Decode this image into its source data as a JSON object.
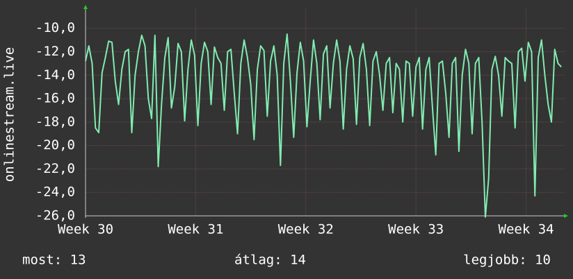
{
  "chart_data": {
    "type": "line",
    "ylabel": "onlinestream.live",
    "xlim": [
      30,
      34.35
    ],
    "ylim": [
      -26,
      -8.3
    ],
    "xticks": [
      {
        "value": 30,
        "label": "Week 30"
      },
      {
        "value": 31,
        "label": "Week 31"
      },
      {
        "value": 32,
        "label": "Week 32"
      },
      {
        "value": 33,
        "label": "Week 33"
      },
      {
        "value": 34,
        "label": "Week 34"
      }
    ],
    "yticks": [
      {
        "value": -26,
        "label": "-26,0"
      },
      {
        "value": -24,
        "label": "-24,0"
      },
      {
        "value": -22,
        "label": "-22,0"
      },
      {
        "value": -20,
        "label": "-20,0"
      },
      {
        "value": -18,
        "label": "-18,0"
      },
      {
        "value": -16,
        "label": "-16,0"
      },
      {
        "value": -14,
        "label": "-14,0"
      },
      {
        "value": -12,
        "label": "-12,0"
      },
      {
        "value": -10,
        "label": "-10,0"
      }
    ],
    "grid": true,
    "x": [
      30.0,
      30.03,
      30.06,
      30.09,
      30.12,
      30.15,
      30.18,
      30.21,
      30.24,
      30.27,
      30.3,
      30.33,
      30.36,
      30.39,
      30.42,
      30.45,
      30.48,
      30.51,
      30.54,
      30.57,
      30.6,
      30.63,
      30.66,
      30.69,
      30.72,
      30.75,
      30.78,
      30.81,
      30.84,
      30.87,
      30.9,
      30.93,
      30.96,
      30.99,
      31.02,
      31.05,
      31.08,
      31.11,
      31.14,
      31.17,
      31.2,
      31.23,
      31.26,
      31.29,
      31.32,
      31.35,
      31.38,
      31.41,
      31.44,
      31.47,
      31.5,
      31.53,
      31.56,
      31.59,
      31.62,
      31.65,
      31.68,
      31.71,
      31.74,
      31.77,
      31.8,
      31.83,
      31.86,
      31.89,
      31.92,
      31.95,
      31.98,
      32.01,
      32.04,
      32.07,
      32.1,
      32.13,
      32.16,
      32.19,
      32.22,
      32.25,
      32.28,
      32.31,
      32.34,
      32.37,
      32.4,
      32.43,
      32.46,
      32.49,
      32.52,
      32.55,
      32.58,
      32.61,
      32.64,
      32.67,
      32.7,
      32.73,
      32.76,
      32.79,
      32.82,
      32.85,
      32.88,
      32.91,
      32.94,
      32.97,
      33.0,
      33.03,
      33.06,
      33.09,
      33.12,
      33.15,
      33.18,
      33.21,
      33.24,
      33.27,
      33.3,
      33.33,
      33.36,
      33.39,
      33.42,
      33.45,
      33.48,
      33.51,
      33.54,
      33.57,
      33.6,
      33.63,
      33.66,
      33.69,
      33.72,
      33.75,
      33.78,
      33.81,
      33.84,
      33.87,
      33.9,
      33.93,
      33.96,
      33.99,
      34.02,
      34.05,
      34.08,
      34.11,
      34.14,
      34.17,
      34.2,
      34.23,
      34.26,
      34.29,
      34.32
    ],
    "series": [
      {
        "color": "#80ecb0",
        "values": [
          -12.8,
          -11.5,
          -13.0,
          -18.5,
          -18.9,
          -13.8,
          -12.5,
          -11.1,
          -11.2,
          -14.5,
          -16.5,
          -13.5,
          -12.0,
          -11.8,
          -18.9,
          -14.0,
          -12.0,
          -10.6,
          -11.5,
          -16.0,
          -17.7,
          -10.6,
          -21.8,
          -16.5,
          -12.5,
          -10.8,
          -16.8,
          -15.0,
          -11.3,
          -12.0,
          -17.9,
          -13.5,
          -11.0,
          -12.3,
          -18.3,
          -13.0,
          -11.2,
          -12.0,
          -16.5,
          -11.6,
          -12.5,
          -13.0,
          -17.0,
          -12.0,
          -11.8,
          -15.5,
          -19.0,
          -13.0,
          -11.0,
          -12.5,
          -14.8,
          -19.5,
          -13.5,
          -11.5,
          -11.9,
          -17.5,
          -12.8,
          -11.5,
          -14.0,
          -21.7,
          -13.0,
          -10.5,
          -14.5,
          -19.3,
          -13.8,
          -11.2,
          -12.8,
          -18.4,
          -14.5,
          -11.0,
          -13.0,
          -17.8,
          -12.2,
          -11.5,
          -16.8,
          -13.0,
          -11.0,
          -12.8,
          -18.6,
          -13.5,
          -11.5,
          -12.6,
          -18.2,
          -12.5,
          -11.3,
          -13.5,
          -18.3,
          -12.8,
          -12.0,
          -14.0,
          -17.0,
          -13.0,
          -12.5,
          -17.2,
          -13.0,
          -13.5,
          -18.0,
          -12.8,
          -13.0,
          -17.5,
          -13.3,
          -12.5,
          -18.6,
          -13.5,
          -12.5,
          -16.8,
          -20.8,
          -13.0,
          -12.8,
          -15.5,
          -19.3,
          -13.0,
          -12.5,
          -20.5,
          -14.0,
          -11.8,
          -13.0,
          -19.0,
          -13.0,
          -12.5,
          -18.0,
          -26.1,
          -22.8,
          -13.5,
          -12.4,
          -14.0,
          -17.5,
          -12.5,
          -12.8,
          -13.0,
          -18.5,
          -12.0,
          -11.7,
          -14.5,
          -11.2,
          -12.0,
          -24.3,
          -12.5,
          -11.0,
          -14.0,
          -16.5,
          -18.0,
          -11.8,
          -13.0,
          -13.3
        ]
      }
    ],
    "footer": {
      "current": "most: 13",
      "average": "átlag: 14",
      "best": "legjobb: 10"
    }
  }
}
